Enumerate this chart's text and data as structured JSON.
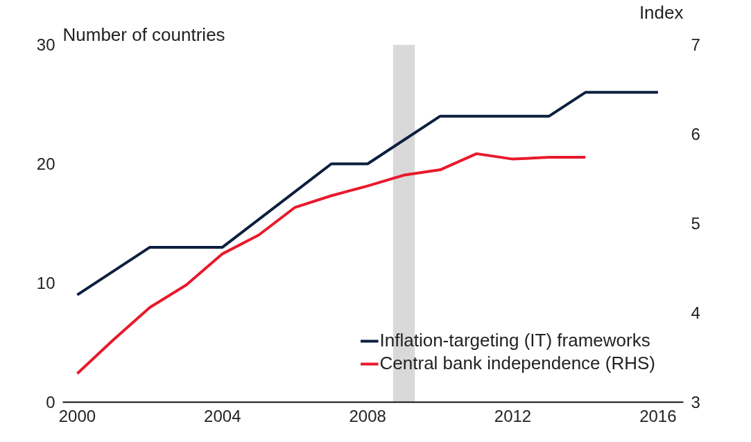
{
  "chart_data": {
    "type": "line",
    "ylabel": "Number of countries",
    "y2label": "Index",
    "xlim": [
      1999.6,
      2016.7
    ],
    "xticks": [
      2000,
      2004,
      2008,
      2012,
      2016
    ],
    "ylim": [
      0,
      30
    ],
    "yticks": [
      0,
      10,
      20,
      30
    ],
    "y2lim": [
      3,
      7
    ],
    "y2ticks": [
      3,
      4,
      5,
      6,
      7
    ],
    "grid": false,
    "legend": "bottom right",
    "bands": [
      {
        "axis": "x",
        "from": 2008.7,
        "to": 2009.3,
        "color": "#d9d9d9"
      }
    ],
    "series": [
      {
        "name": "Inflation-targeting (IT) frameworks",
        "color": "#0c1f3f",
        "x": [
          2000,
          2002,
          2004,
          2007,
          2008,
          2010,
          2013,
          2014,
          2016
        ],
        "values": [
          9,
          13,
          13,
          20,
          20,
          24,
          24,
          26,
          26
        ]
      },
      {
        "name": "Central bank independence (RHS)",
        "color": "#e8192c",
        "axis": "y2",
        "x": [
          2000,
          2001,
          2002,
          2003,
          2004,
          2005,
          2006,
          2007,
          2008,
          2009,
          2010,
          2011,
          2012,
          2013,
          2014
        ],
        "values": [
          3.32,
          3.7,
          4.06,
          4.31,
          4.66,
          4.87,
          5.18,
          5.31,
          5.42,
          5.54,
          5.6,
          5.78,
          5.72,
          5.74,
          5.74
        ]
      }
    ]
  }
}
